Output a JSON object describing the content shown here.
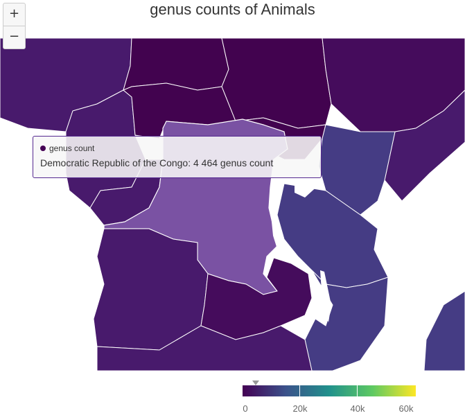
{
  "title": "genus counts of Animals",
  "zoom": {
    "in_label": "+",
    "out_label": "−"
  },
  "map": {
    "series_name": "genus count",
    "hover_region": "Democratic Republic of the Congo",
    "hover_value": 4464,
    "colors": {
      "dark": "#450c5c",
      "darker": "#42034f",
      "mid_dark": "#481a6c",
      "blueish": "#453c84",
      "highlight": "#7a52a3",
      "land_edge": "#ffffff"
    }
  },
  "tooltip": {
    "series_label": "genus count",
    "value_text": "Democratic Republic of the Congo: 4 464 genus count"
  },
  "legend": {
    "min": 0,
    "max": 60000,
    "colors": [
      "#440154",
      "#3b528b",
      "#21918c",
      "#5ec962",
      "#fde725"
    ],
    "tick_labels": [
      "0",
      "20k",
      "40k",
      "60k"
    ],
    "marker_value": 4464
  }
}
